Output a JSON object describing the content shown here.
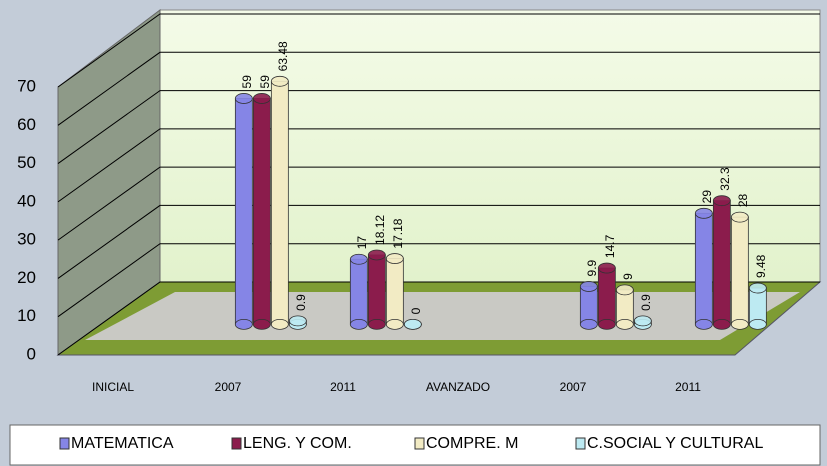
{
  "chart_data": {
    "type": "bar3d",
    "categories": [
      "INICIAL",
      "2007",
      "2011",
      "AVANZADO",
      "2007",
      "2011"
    ],
    "series": [
      {
        "name": "MATEMATICA",
        "color": "#8585e6",
        "values": [
          null,
          59,
          17,
          null,
          9.9,
          29
        ]
      },
      {
        "name": "LENG. Y COM.",
        "color": "#8b1c4c",
        "values": [
          null,
          59,
          18.12,
          null,
          14.7,
          32.3
        ]
      },
      {
        "name": "COMPRE. M",
        "color": "#f2ebc4",
        "values": [
          null,
          63.48,
          17.18,
          null,
          9,
          28
        ]
      },
      {
        "name": "C.SOCIAL Y CULTURAL",
        "color": "#bdeaf2",
        "values": [
          null,
          0.9,
          0,
          null,
          0.9,
          9.48
        ]
      }
    ],
    "ylim": [
      0,
      70
    ],
    "yticks": [
      0,
      10,
      20,
      30,
      40,
      50,
      60,
      70
    ],
    "grid": true,
    "legend": "bottom"
  }
}
